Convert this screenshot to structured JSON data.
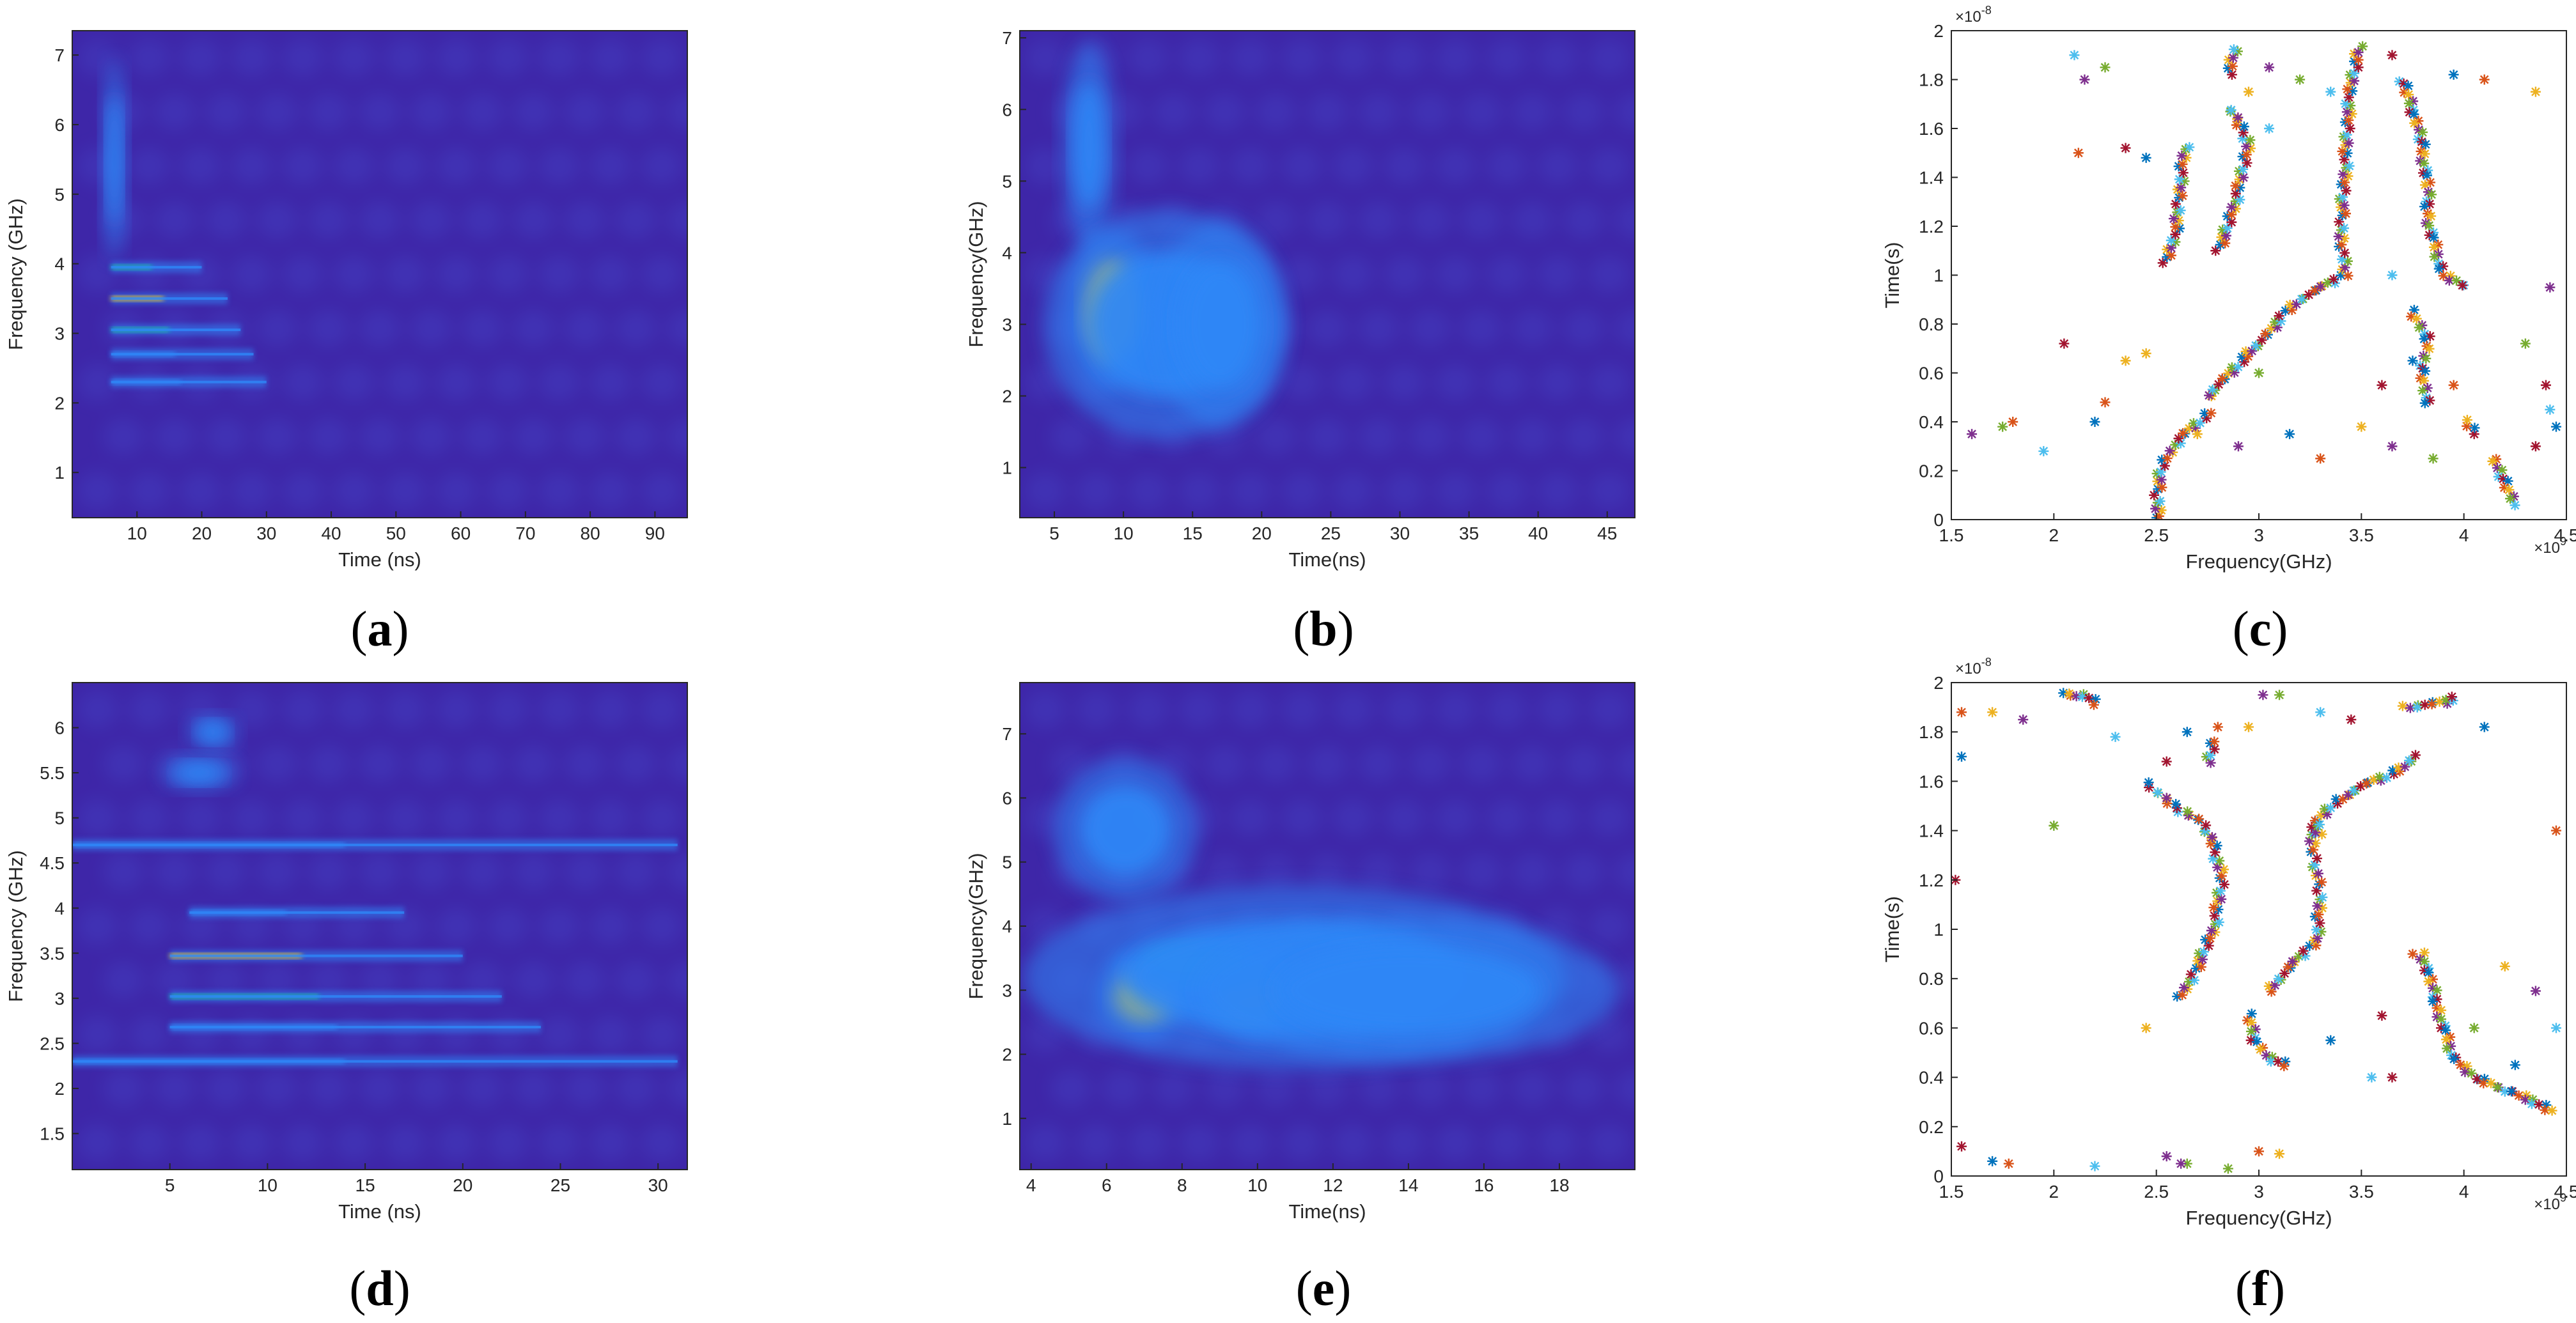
{
  "colors": {
    "deep": "#3e26a8",
    "mid": "#2e87f7",
    "cyan": "#18c9a6",
    "yellow": "#f9d51f",
    "axis": "#262626"
  },
  "scatter_palette": [
    "#0072bd",
    "#d95319",
    "#edb120",
    "#7e2f8e",
    "#77ac30",
    "#4dbeee",
    "#a2142f"
  ],
  "chart_data": [
    {
      "id": "a",
      "type": "heatmap",
      "caption": "(a)",
      "xlabel": "Time (ns)",
      "ylabel": "Frequency (GHz)",
      "xlim": [
        0,
        95
      ],
      "ylim": [
        0.35,
        7.35
      ],
      "xticks": [
        10,
        20,
        30,
        40,
        50,
        60,
        70,
        80,
        90
      ],
      "yticks": [
        1,
        2,
        3,
        4,
        5,
        6,
        7
      ],
      "bands": [
        {
          "f": 3.95,
          "t0": 6,
          "t1": 20,
          "level": 0.65
        },
        {
          "f": 3.5,
          "t0": 6,
          "t1": 24,
          "level": 1.0
        },
        {
          "f": 3.05,
          "t0": 6,
          "t1": 26,
          "level": 0.7
        },
        {
          "f": 2.7,
          "t0": 6,
          "t1": 28,
          "level": 0.55
        },
        {
          "f": 2.3,
          "t0": 6,
          "t1": 30,
          "level": 0.45
        }
      ],
      "blobs": [
        {
          "t": 6.5,
          "f": 5.5,
          "dt": 1.2,
          "df": 0.9,
          "level": 0.35
        }
      ]
    },
    {
      "id": "b",
      "type": "heatmap",
      "caption": "(b)",
      "xlabel": "Time(ns)",
      "ylabel": "Frequency(GHz)",
      "xlim": [
        2.5,
        47
      ],
      "ylim": [
        0.3,
        7.1
      ],
      "xticks": [
        5,
        10,
        15,
        20,
        25,
        30,
        35,
        40,
        45
      ],
      "yticks": [
        1,
        2,
        3,
        4,
        5,
        6,
        7
      ],
      "blobs": [
        {
          "t": 7.5,
          "f": 5.5,
          "dt": 1.2,
          "df": 0.9,
          "level": 0.5
        },
        {
          "t": 9.2,
          "f": 3.2,
          "dt": 2.0,
          "df": 0.7,
          "level": 1.0
        },
        {
          "t": 13,
          "f": 3.0,
          "dt": 5.5,
          "df": 1.0,
          "level": 0.55
        },
        {
          "t": 17,
          "f": 3.0,
          "dt": 3.0,
          "df": 0.9,
          "level": 0.35
        }
      ],
      "bands": []
    },
    {
      "id": "c",
      "type": "scatter",
      "caption": "(c)",
      "xlabel": "Frequency(GHz)",
      "ylabel": "Time(s)",
      "x_exponent": "×10",
      "x_exponent_power": "9",
      "y_exponent": "×10",
      "y_exponent_power": "-8",
      "xlim": [
        1.5,
        4.5
      ],
      "ylim": [
        0,
        2
      ],
      "xticks": [
        1.5,
        2,
        2.5,
        3,
        3.5,
        4,
        4.5
      ],
      "xtick_labels": [
        "1.5",
        "2",
        "2.5",
        "3",
        "3.5",
        "4",
        "4.5"
      ],
      "yticks": [
        0,
        0.2,
        0.4,
        0.6,
        0.8,
        1,
        1.2,
        1.4,
        1.6,
        1.8,
        2
      ],
      "ytick_labels": [
        "0",
        "0.2",
        "0.4",
        "0.6",
        "0.8",
        "1",
        "1.2",
        "1.4",
        "1.6",
        "1.8",
        "2"
      ],
      "curves": [
        [
          [
            2.52,
            0.0
          ],
          [
            2.5,
            0.1
          ],
          [
            2.53,
            0.22
          ],
          [
            2.6,
            0.32
          ],
          [
            2.68,
            0.38
          ],
          [
            2.78,
            0.45
          ]
        ],
        [
          [
            2.75,
            0.5
          ],
          [
            2.88,
            0.62
          ],
          [
            3.0,
            0.72
          ],
          [
            3.1,
            0.82
          ],
          [
            3.2,
            0.9
          ],
          [
            3.3,
            0.95
          ],
          [
            3.42,
            1.0
          ]
        ],
        [
          [
            3.42,
            1.0
          ],
          [
            3.4,
            1.2
          ],
          [
            3.42,
            1.4
          ],
          [
            3.43,
            1.6
          ],
          [
            3.45,
            1.8
          ],
          [
            3.5,
            1.95
          ]
        ],
        [
          [
            3.7,
            1.8
          ],
          [
            3.78,
            1.6
          ],
          [
            3.82,
            1.4
          ],
          [
            3.83,
            1.2
          ],
          [
            3.9,
            1.0
          ],
          [
            4.02,
            0.95
          ]
        ],
        [
          [
            3.75,
            0.85
          ],
          [
            3.82,
            0.75
          ],
          [
            3.8,
            0.6
          ],
          [
            3.82,
            0.45
          ]
        ],
        [
          [
            4.15,
            0.25
          ],
          [
            4.2,
            0.15
          ],
          [
            4.25,
            0.05
          ]
        ],
        [
          [
            2.55,
            1.05
          ],
          [
            2.6,
            1.2
          ],
          [
            2.62,
            1.4
          ],
          [
            2.65,
            1.55
          ]
        ],
        [
          [
            2.8,
            1.1
          ],
          [
            2.85,
            1.2
          ],
          [
            2.9,
            1.35
          ],
          [
            2.95,
            1.55
          ],
          [
            2.85,
            1.7
          ]
        ],
        [
          [
            2.85,
            1.82
          ],
          [
            2.9,
            1.95
          ]
        ],
        [
          [
            4.05,
            0.35
          ],
          [
            4.0,
            0.42
          ]
        ]
      ],
      "scatter_points": [
        [
          1.6,
          0.35
        ],
        [
          1.75,
          0.38
        ],
        [
          1.95,
          0.28
        ],
        [
          2.05,
          0.72
        ],
        [
          2.2,
          0.4
        ],
        [
          2.25,
          0.48
        ],
        [
          2.35,
          0.65
        ],
        [
          2.15,
          1.8
        ],
        [
          2.25,
          1.85
        ],
        [
          2.1,
          1.9
        ],
        [
          2.35,
          1.52
        ],
        [
          2.45,
          1.48
        ],
        [
          2.12,
          1.5
        ],
        [
          2.95,
          1.75
        ],
        [
          3.05,
          1.85
        ],
        [
          3.2,
          1.8
        ],
        [
          3.35,
          1.75
        ],
        [
          3.65,
          1.9
        ],
        [
          3.95,
          1.82
        ],
        [
          4.1,
          1.8
        ],
        [
          4.35,
          1.75
        ],
        [
          4.42,
          0.95
        ],
        [
          4.3,
          0.72
        ],
        [
          4.42,
          0.45
        ],
        [
          4.35,
          0.3
        ],
        [
          3.15,
          0.35
        ],
        [
          3.3,
          0.25
        ],
        [
          3.5,
          0.38
        ],
        [
          3.65,
          0.3
        ],
        [
          3.85,
          0.25
        ],
        [
          3.05,
          1.6
        ],
        [
          3.6,
          0.55
        ],
        [
          3.75,
          0.65
        ],
        [
          3.95,
          0.55
        ],
        [
          2.7,
          0.35
        ],
        [
          2.9,
          0.3
        ],
        [
          3.0,
          0.6
        ],
        [
          3.65,
          1.0
        ],
        [
          4.4,
          0.55
        ],
        [
          4.45,
          0.38
        ],
        [
          1.8,
          0.4
        ],
        [
          2.45,
          0.68
        ]
      ]
    },
    {
      "id": "d",
      "type": "heatmap",
      "caption": "(d)",
      "xlabel": "Time (ns)",
      "ylabel": "Frequency (GHz)",
      "xlim": [
        0,
        31.5
      ],
      "ylim": [
        1.1,
        6.5
      ],
      "xticks": [
        5,
        10,
        15,
        20,
        25,
        30
      ],
      "xtick_labels": [
        "5",
        "10",
        "15",
        "20",
        "25",
        "30"
      ],
      "yticks": [
        1.5,
        2,
        2.5,
        3,
        3.5,
        4,
        4.5,
        5,
        5.5,
        6
      ],
      "ytick_labels": [
        "1.5",
        "2",
        "2.5",
        "3",
        "3.5",
        "4",
        "4.5",
        "5",
        "5.5",
        "6"
      ],
      "bands": [
        {
          "f": 3.95,
          "t0": 6,
          "t1": 17,
          "level": 0.55
        },
        {
          "f": 3.47,
          "t0": 5,
          "t1": 20,
          "level": 0.85
        },
        {
          "f": 3.02,
          "t0": 5,
          "t1": 22,
          "level": 0.7
        },
        {
          "f": 2.68,
          "t0": 5,
          "t1": 24,
          "level": 0.55
        },
        {
          "f": 2.3,
          "t0": 0,
          "t1": 31,
          "level": 0.3
        },
        {
          "f": 4.7,
          "t0": 0,
          "t1": 31,
          "level": 0.25
        }
      ],
      "blobs": [
        {
          "t": 6.5,
          "f": 5.5,
          "dt": 1.2,
          "df": 0.12,
          "level": 0.5
        },
        {
          "t": 7.2,
          "f": 5.95,
          "dt": 0.8,
          "df": 0.12,
          "level": 0.4
        }
      ]
    },
    {
      "id": "e",
      "type": "heatmap",
      "caption": "(e)",
      "xlabel": "Time(ns)",
      "ylabel": "Frequency(GHz)",
      "xlim": [
        3.7,
        20
      ],
      "ylim": [
        0.2,
        7.8
      ],
      "xticks": [
        4,
        6,
        8,
        10,
        12,
        14,
        16,
        18
      ],
      "xtick_labels": [
        "4",
        "6",
        "8",
        "10",
        "12",
        "14",
        "16",
        "18"
      ],
      "yticks": [
        1,
        2,
        3,
        4,
        5,
        6,
        7
      ],
      "blobs": [
        {
          "t": 7.0,
          "f": 2.9,
          "dt": 0.8,
          "df": 0.4,
          "level": 0.95
        },
        {
          "t": 9.8,
          "f": 2.95,
          "dt": 0.9,
          "df": 0.4,
          "level": 1.0
        },
        {
          "t": 8.5,
          "f": 3.4,
          "dt": 1.5,
          "df": 0.3,
          "level": 0.8
        },
        {
          "t": 11,
          "f": 3.2,
          "dt": 4.5,
          "df": 0.9,
          "level": 0.45
        },
        {
          "t": 6.5,
          "f": 5.5,
          "dt": 1.2,
          "df": 0.7,
          "level": 0.3
        },
        {
          "t": 14,
          "f": 3.0,
          "dt": 3.5,
          "df": 0.7,
          "level": 0.35
        }
      ],
      "bands": []
    },
    {
      "id": "f",
      "type": "scatter",
      "caption": "(f)",
      "xlabel": "Frequency(GHz)",
      "ylabel": "Time(s)",
      "x_exponent": "×10",
      "x_exponent_power": "9",
      "y_exponent": "×10",
      "y_exponent_power": "-8",
      "xlim": [
        1.5,
        4.5
      ],
      "ylim": [
        0,
        2
      ],
      "xticks": [
        1.5,
        2,
        2.5,
        3,
        3.5,
        4,
        4.5
      ],
      "xtick_labels": [
        "1.5",
        "2",
        "2.5",
        "3",
        "3.5",
        "4",
        "4.5"
      ],
      "yticks": [
        0,
        0.2,
        0.4,
        0.6,
        0.8,
        1,
        1.2,
        1.4,
        1.6,
        1.8,
        2
      ],
      "ytick_labels": [
        "0",
        "0.2",
        "0.4",
        "0.6",
        "0.8",
        "1",
        "1.2",
        "1.4",
        "1.6",
        "1.8",
        "2"
      ],
      "curves": [
        [
          [
            2.62,
            0.72
          ],
          [
            2.7,
            0.85
          ],
          [
            2.78,
            1.0
          ],
          [
            2.82,
            1.2
          ],
          [
            2.78,
            1.35
          ],
          [
            2.7,
            1.45
          ],
          [
            2.58,
            1.5
          ],
          [
            2.45,
            1.6
          ]
        ],
        [
          [
            3.05,
            0.75
          ],
          [
            3.15,
            0.85
          ],
          [
            3.28,
            0.95
          ],
          [
            3.3,
            1.1
          ],
          [
            3.28,
            1.25
          ],
          [
            3.25,
            1.4
          ],
          [
            3.35,
            1.5
          ],
          [
            3.5,
            1.58
          ],
          [
            3.7,
            1.65
          ],
          [
            3.78,
            1.72
          ]
        ],
        [
          [
            2.95,
            0.65
          ],
          [
            2.98,
            0.55
          ],
          [
            3.05,
            0.48
          ],
          [
            3.15,
            0.44
          ]
        ],
        [
          [
            3.8,
            0.9
          ],
          [
            3.85,
            0.75
          ],
          [
            3.9,
            0.6
          ],
          [
            3.95,
            0.48
          ],
          [
            4.05,
            0.4
          ],
          [
            4.2,
            0.35
          ],
          [
            4.35,
            0.3
          ],
          [
            4.45,
            0.25
          ]
        ],
        [
          [
            2.75,
            1.68
          ],
          [
            2.78,
            1.78
          ]
        ],
        [
          [
            3.72,
            1.9
          ],
          [
            3.9,
            1.92
          ],
          [
            3.98,
            1.95
          ]
        ],
        [
          [
            2.05,
            1.95
          ],
          [
            2.15,
            1.95
          ],
          [
            2.22,
            1.9
          ]
        ],
        [
          [
            3.3,
            1.38
          ],
          [
            3.28,
            1.45
          ]
        ]
      ],
      "scatter_points": [
        [
          1.52,
          1.2
        ],
        [
          1.55,
          1.7
        ],
        [
          1.55,
          1.88
        ],
        [
          1.7,
          1.88
        ],
        [
          1.85,
          1.85
        ],
        [
          2.0,
          1.42
        ],
        [
          2.3,
          1.78
        ],
        [
          2.55,
          1.68
        ],
        [
          2.65,
          1.8
        ],
        [
          2.8,
          1.82
        ],
        [
          2.95,
          1.82
        ],
        [
          3.02,
          1.95
        ],
        [
          3.1,
          1.95
        ],
        [
          3.3,
          1.88
        ],
        [
          3.45,
          1.85
        ],
        [
          4.1,
          1.82
        ],
        [
          4.45,
          1.4
        ],
        [
          4.2,
          0.85
        ],
        [
          4.35,
          0.75
        ],
        [
          4.05,
          0.6
        ],
        [
          3.55,
          0.4
        ],
        [
          3.6,
          0.65
        ],
        [
          3.35,
          0.55
        ],
        [
          3.0,
          0.1
        ],
        [
          3.1,
          0.09
        ],
        [
          2.55,
          0.08
        ],
        [
          2.65,
          0.05
        ],
        [
          2.2,
          0.04
        ],
        [
          1.55,
          0.12
        ],
        [
          1.7,
          0.06
        ],
        [
          1.78,
          0.05
        ],
        [
          2.45,
          0.6
        ],
        [
          2.62,
          0.05
        ],
        [
          2.85,
          0.03
        ],
        [
          4.45,
          0.6
        ],
        [
          3.65,
          0.4
        ],
        [
          4.25,
          0.45
        ],
        [
          3.75,
          0.9
        ]
      ]
    }
  ]
}
